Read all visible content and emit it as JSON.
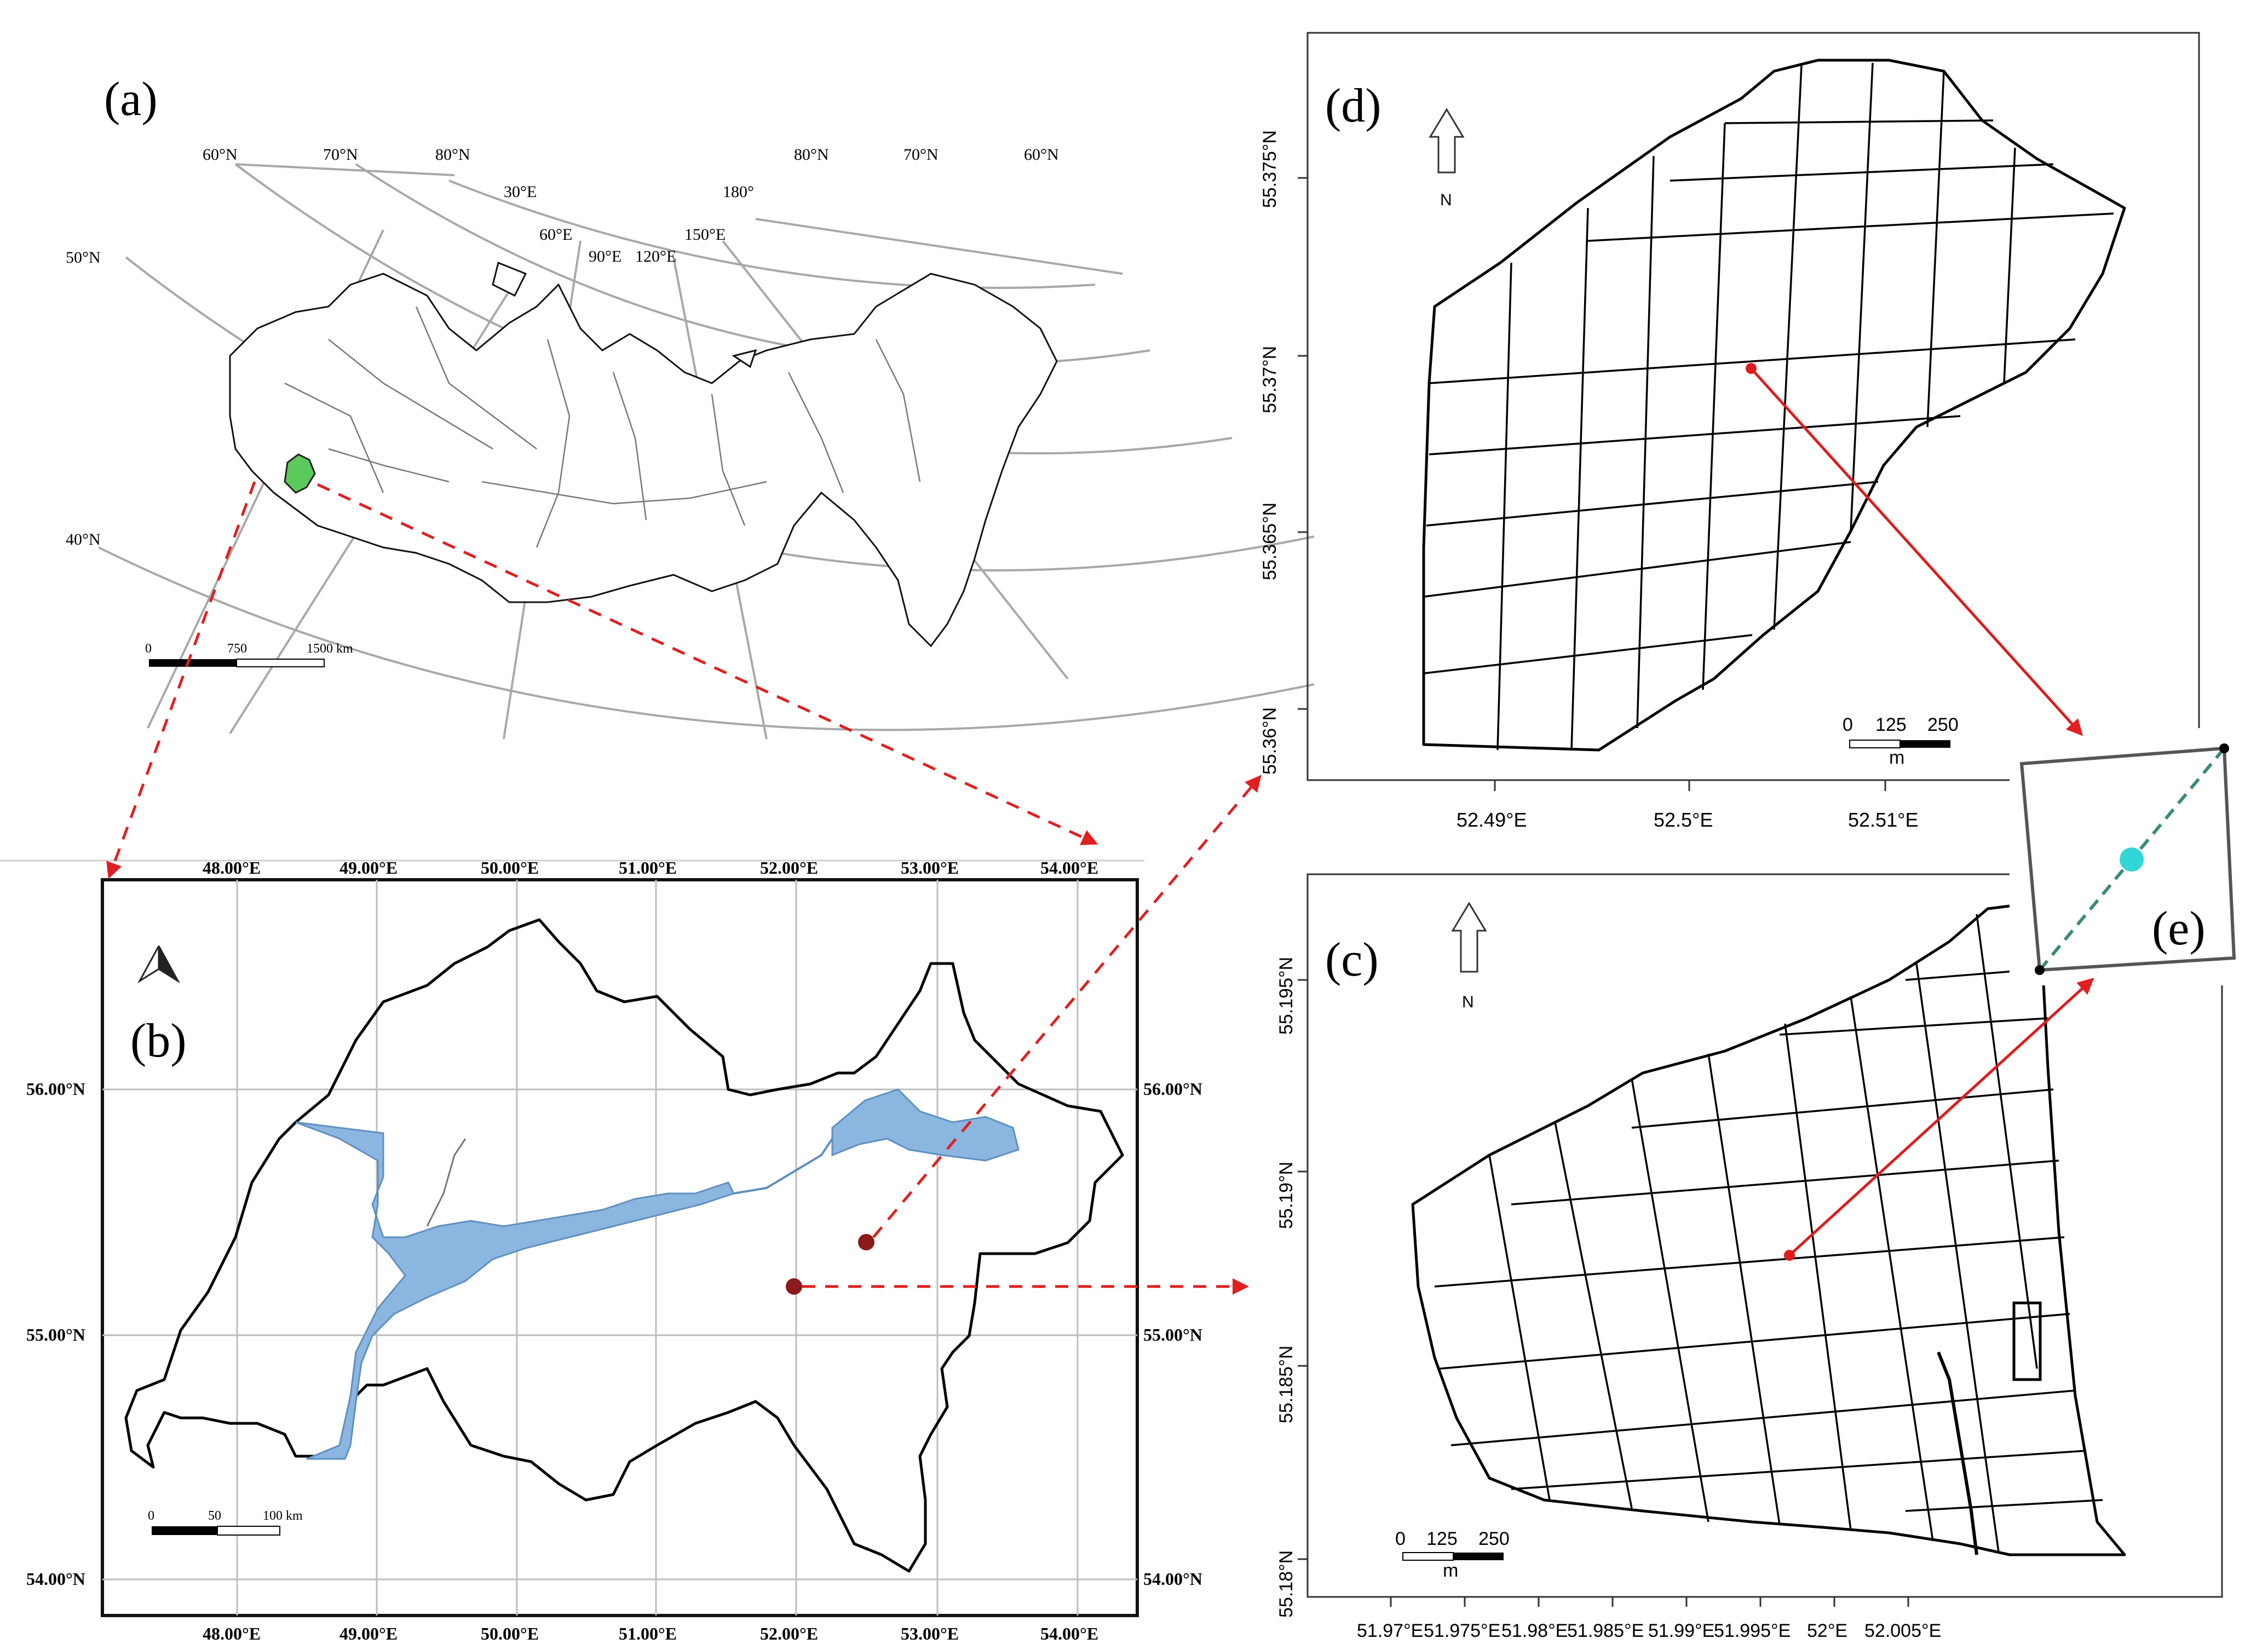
{
  "panels": {
    "a": {
      "label": "(a)"
    },
    "b": {
      "label": "(b)"
    },
    "c": {
      "label": "(c)"
    },
    "d": {
      "label": "(d)"
    },
    "e": {
      "label": "(e)"
    }
  },
  "panel_a": {
    "top_lat_labels": [
      "60°N",
      "70°N",
      "80°N",
      "80°N",
      "70°N",
      "60°N"
    ],
    "left_lat_labels": [
      "50°N",
      "40°N"
    ],
    "lon_labels": [
      "30°E",
      "60°E",
      "90°E",
      "120°E",
      "150°E",
      "180°"
    ],
    "scale": {
      "zero": "0",
      "mid": "750",
      "end": "1500 km"
    }
  },
  "panel_b": {
    "lon_labels": [
      "48.00°E",
      "49.00°E",
      "50.00°E",
      "51.00°E",
      "52.00°E",
      "53.00°E",
      "54.00°E"
    ],
    "lat_labels": [
      "56.00°N",
      "55.00°N",
      "54.00°N"
    ],
    "scale": {
      "zero": "0",
      "mid": "50",
      "end": "100 km"
    }
  },
  "panel_d": {
    "north": "N",
    "y_ticks": [
      "55.375°N",
      "55.37°N",
      "55.365°N",
      "55.36°N"
    ],
    "x_ticks": [
      "52.49°E",
      "52.5°E",
      "52.51°E"
    ],
    "scale": {
      "zero": "0",
      "mid": "125",
      "end": "250",
      "unit": "m"
    }
  },
  "panel_c": {
    "north": "N",
    "y_ticks": [
      "55.195°N",
      "55.19°N",
      "55.185°N",
      "55.18°N"
    ],
    "x_ticks": [
      "51.97°E",
      "51.975°E",
      "51.98°E",
      "51.985°E",
      "51.99°E",
      "51.995°E",
      "52°E",
      "52.005°E"
    ],
    "scale": {
      "zero": "0",
      "mid": "125",
      "end": "250",
      "unit": "m"
    }
  },
  "colors": {
    "highlight_region": "#5bc95b",
    "water": "#8ab6e0",
    "site_marker": "#8b1a1a",
    "arrow": "#e02020",
    "center_point": "#33d6d6"
  }
}
